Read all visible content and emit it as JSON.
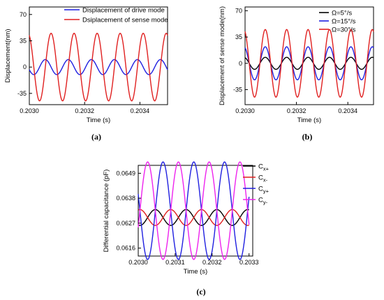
{
  "chart_data": [
    {
      "id": "a",
      "type": "line",
      "panel_label": "(a)",
      "xlabel": "Time (s)",
      "ylabel": "Displacement(nm)",
      "xlim": [
        0.203,
        0.2035
      ],
      "ylim": [
        -50,
        80
      ],
      "xticks": [
        0.203,
        0.2032,
        0.2034
      ],
      "xtick_labels": [
        "0.2030",
        "0.2032",
        "0.2034"
      ],
      "yticks": [
        -35,
        0,
        35,
        70
      ],
      "ytick_labels": [
        "-35",
        "0",
        "35",
        "70"
      ],
      "legend_position": "top-right",
      "x_range": [
        0.203,
        0.2035
      ],
      "series": [
        {
          "name": "Displacement of drive mode",
          "color": "#1f1fe0",
          "amplitude": 10,
          "period": 8.33e-05,
          "phase_deg": 200
        },
        {
          "name": "Dsiplacement of sense mode",
          "color": "#e01f1f",
          "amplitude": 45,
          "period": 8.33e-05,
          "phase_deg": 110
        }
      ]
    },
    {
      "id": "b",
      "type": "line",
      "panel_label": "(b)",
      "xlabel": "Time (s)",
      "ylabel": "Displacement of sense mode(nm)",
      "xlim": [
        0.203,
        0.2035
      ],
      "ylim": [
        -55,
        75
      ],
      "xticks": [
        0.203,
        0.2032,
        0.2034
      ],
      "xtick_labels": [
        "0.2030",
        "0.2032",
        "0.2034"
      ],
      "yticks": [
        -35,
        0,
        35,
        70
      ],
      "ytick_labels": [
        "-35",
        "0",
        "35",
        "70"
      ],
      "legend_position": "top-left",
      "x_range": [
        0.203,
        0.2035
      ],
      "series": [
        {
          "name": "Ω=5°/s",
          "color": "#000000",
          "amplitude": 8,
          "period": 8.33e-05,
          "phase_deg": 110
        },
        {
          "name": "Ω=15°/s",
          "color": "#1f1fe0",
          "amplitude": 22,
          "period": 8.33e-05,
          "phase_deg": 110
        },
        {
          "name": "Ω=30°/s",
          "color": "#e01f1f",
          "amplitude": 45,
          "period": 8.33e-05,
          "phase_deg": 110
        }
      ]
    },
    {
      "id": "c",
      "type": "line",
      "panel_label": "(c)",
      "xlabel": "Time (s)",
      "ylabel": "Differential capacitance (pF)",
      "xlim": [
        0.203,
        0.20331
      ],
      "ylim": [
        0.06125,
        0.06525
      ],
      "xticks": [
        0.203,
        0.2031,
        0.2032,
        0.2033
      ],
      "xtick_labels": [
        "0.2030",
        "0.2031",
        "0.2032",
        "0.2033"
      ],
      "yticks": [
        0.0616,
        0.0627,
        0.0638,
        0.0649
      ],
      "ytick_labels": [
        "0.0616",
        "0.0627",
        "0.0638",
        "0.0649"
      ],
      "legend_position": "top-right",
      "x_range": [
        0.203,
        0.2033
      ],
      "series": [
        {
          "name": "C",
          "subscript": "x+",
          "color": "#000000",
          "center": 0.06295,
          "amplitude": 0.00035,
          "period": 8.33e-05,
          "phase_deg": 250
        },
        {
          "name": "C",
          "subscript": "x-",
          "color": "#e01f1f",
          "center": 0.06295,
          "amplitude": 0.00035,
          "period": 8.33e-05,
          "phase_deg": 70
        },
        {
          "name": "C",
          "subscript": "y+",
          "color": "#1f1fe0",
          "center": 0.06325,
          "amplitude": 0.00215,
          "period": 8.33e-05,
          "phase_deg": 160
        },
        {
          "name": "C",
          "subscript": "y-",
          "color": "#ee22ee",
          "center": 0.06325,
          "amplitude": 0.00215,
          "period": 8.33e-05,
          "phase_deg": 340
        }
      ]
    }
  ]
}
